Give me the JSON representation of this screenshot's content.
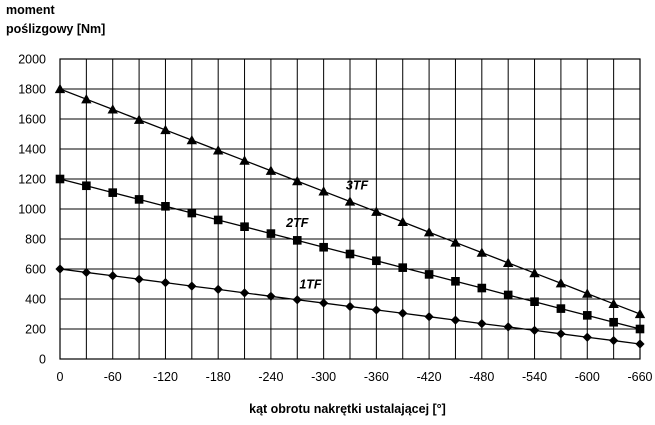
{
  "chart_data": {
    "type": "line",
    "ylabel_lines": [
      "moment",
      "poślizgowy  [Nm]"
    ],
    "xlabel": "kąt obrotu nakrętki ustalającej [°]",
    "x": [
      0,
      -30,
      -60,
      -90,
      -120,
      -150,
      -180,
      -210,
      -240,
      -270,
      -300,
      -330,
      -360,
      -390,
      -420,
      -450,
      -480,
      -510,
      -540,
      -570,
      -600,
      -630,
      -660
    ],
    "x_tick_labels": [
      "0",
      "-60",
      "-120",
      "-180",
      "-240",
      "-300",
      "-360",
      "-420",
      "-480",
      "-540",
      "-600",
      "-660"
    ],
    "x_tick_values": [
      0,
      -60,
      -120,
      -180,
      -240,
      -300,
      -360,
      -420,
      -480,
      -540,
      -600,
      -660
    ],
    "xlim": [
      0,
      -660
    ],
    "ylim": [
      0,
      2000
    ],
    "y_ticks": [
      0,
      200,
      400,
      600,
      800,
      1000,
      1200,
      1400,
      1600,
      1800,
      2000
    ],
    "grid": true,
    "series": [
      {
        "name": "1TF",
        "marker": "diamond",
        "label_x": -285,
        "label_y": 470,
        "values": [
          600,
          577,
          555,
          532,
          509,
          486,
          464,
          441,
          418,
          395,
          373,
          350,
          327,
          305,
          282,
          259,
          236,
          214,
          191,
          168,
          145,
          123,
          100
        ]
      },
      {
        "name": "2TF",
        "marker": "square",
        "label_x": -270,
        "label_y": 880,
        "values": [
          1200,
          1155,
          1109,
          1064,
          1018,
          973,
          927,
          882,
          836,
          791,
          745,
          700,
          655,
          609,
          564,
          518,
          473,
          427,
          382,
          336,
          291,
          245,
          200
        ]
      },
      {
        "name": "3TF",
        "marker": "triangle",
        "label_x": -338,
        "label_y": 1130,
        "values": [
          1800,
          1732,
          1664,
          1595,
          1527,
          1459,
          1391,
          1323,
          1255,
          1186,
          1118,
          1050,
          982,
          914,
          845,
          777,
          709,
          641,
          573,
          505,
          436,
          368,
          300
        ]
      }
    ]
  }
}
